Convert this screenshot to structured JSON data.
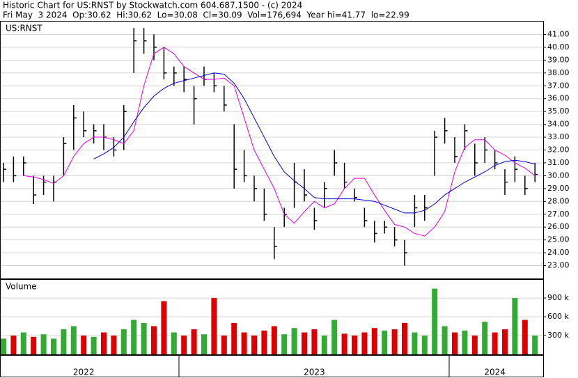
{
  "chart_data": [
    {
      "type": "ohlc",
      "title": "Historic Chart for US:RNST by Stockwatch.com 604.687.1500 - (c) 2024",
      "subtitle": "Fri May  3 2024  Op:30.62  Hi:30.62  Lo=30.08  Cl=30.09  Vol=176,694  Year hi=41.77  lo=22.99",
      "label": "US:RNST",
      "color": "#000000",
      "categories": [
        null,
        null,
        null,
        null,
        null,
        null,
        null,
        null,
        "2022",
        null,
        null,
        null,
        null,
        null,
        null,
        null,
        null,
        null,
        null,
        null,
        null,
        null,
        null,
        null,
        null,
        null,
        null,
        null,
        null,
        null,
        null,
        "2023",
        null,
        null,
        null,
        null,
        null,
        null,
        null,
        null,
        null,
        null,
        null,
        null,
        null,
        null,
        null,
        null,
        null,
        "2024",
        null,
        null,
        null,
        null
      ],
      "high": [
        31,
        31.5,
        31.5,
        30,
        30,
        30,
        33,
        35.5,
        35,
        34,
        34,
        33,
        35.5,
        41.5,
        41.5,
        41,
        40,
        38.5,
        38.5,
        37,
        38.5,
        38,
        37,
        34,
        32,
        30,
        29,
        26,
        27.5,
        31,
        30.5,
        27.5,
        29.5,
        32,
        31,
        29,
        27.5,
        26.5,
        26.5,
        26,
        25,
        28.5,
        28.5,
        33.5,
        34.5,
        33,
        34,
        32.5,
        33,
        32,
        30.5,
        31.5,
        30,
        31
      ],
      "low": [
        29.5,
        29.5,
        30,
        27.8,
        28.5,
        28,
        30,
        32,
        33,
        32.5,
        32,
        31.5,
        32,
        38,
        39.5,
        39,
        37.5,
        37,
        36.5,
        34,
        37,
        36.5,
        35,
        29,
        29.5,
        28,
        26.5,
        23.5,
        26,
        27.5,
        28,
        25.8,
        27.5,
        30,
        29,
        28,
        26,
        24.8,
        25.5,
        24.5,
        23,
        26,
        26.5,
        30,
        32.5,
        31,
        32,
        30,
        31,
        30.5,
        28.5,
        29.5,
        28.5,
        29.5
      ],
      "close": [
        30.5,
        30,
        31,
        28.5,
        29.5,
        29.5,
        32.5,
        34.5,
        33.5,
        33.5,
        33,
        32,
        35,
        40.5,
        40.5,
        40,
        38,
        38,
        37.5,
        36,
        37.5,
        37,
        35.5,
        30.5,
        30,
        29,
        27,
        24.5,
        27,
        29.5,
        28.5,
        26.5,
        29,
        31,
        29.5,
        28.3,
        26.5,
        25.5,
        26,
        25,
        24,
        27.5,
        27.5,
        33,
        33.5,
        31.5,
        33.5,
        31,
        32,
        31,
        29.5,
        30.5,
        29,
        30.1
      ],
      "overlays": [
        {
          "color": "#e000e0",
          "values": [
            null,
            null,
            30,
            29.9,
            29.7,
            29.4,
            30,
            31.5,
            32.5,
            33,
            33,
            32.8,
            32.5,
            33.5,
            37,
            39.5,
            40,
            39.5,
            38.5,
            38,
            37.5,
            37.5,
            37.6,
            37,
            34.5,
            32,
            30.5,
            29,
            27,
            26.3,
            27.2,
            28,
            27.5,
            27.8,
            29,
            29.8,
            29.8,
            28.5,
            27.3,
            26.2,
            26,
            25.5,
            25.3,
            26,
            27.2,
            30.3,
            32.2,
            32.8,
            32.8,
            32,
            31.6,
            31,
            30.6,
            30
          ]
        },
        {
          "color": "#0000cc",
          "values": [
            null,
            null,
            null,
            null,
            null,
            null,
            null,
            null,
            null,
            31.3,
            31.7,
            32.2,
            33.0,
            34.2,
            35.3,
            36.2,
            36.8,
            37.2,
            37.4,
            37.6,
            37.8,
            38,
            37.9,
            37.2,
            36,
            34.5,
            33,
            31.5,
            30.3,
            29.6,
            29,
            28.3,
            28.2,
            28.2,
            28.2,
            28.2,
            28.1,
            28,
            27.7,
            27.4,
            27.1,
            27.1,
            27.3,
            27.8,
            28.5,
            29,
            29.5,
            29.9,
            30.3,
            30.8,
            31.1,
            31.2,
            31.1,
            30.9
          ]
        }
      ],
      "ylim": [
        22,
        42
      ],
      "yticks": [
        {
          "value": 23,
          "label": "23.00"
        },
        {
          "value": 24,
          "label": "24.00"
        },
        {
          "value": 25,
          "label": "25.00"
        },
        {
          "value": 26,
          "label": "26.00"
        },
        {
          "value": 27,
          "label": "27.00"
        },
        {
          "value": 28,
          "label": "28.00"
        },
        {
          "value": 29,
          "label": "29.00"
        },
        {
          "value": 30,
          "label": "30.00"
        },
        {
          "value": 31,
          "label": "31.00"
        },
        {
          "value": 32,
          "label": "32.00"
        },
        {
          "value": 33,
          "label": "33.00"
        },
        {
          "value": 34,
          "label": "34.00"
        },
        {
          "value": 35,
          "label": "35.00"
        },
        {
          "value": 36,
          "label": "36.00"
        },
        {
          "value": 37,
          "label": "37.00"
        },
        {
          "value": 38,
          "label": "38.00"
        },
        {
          "value": 39,
          "label": "39.00"
        },
        {
          "value": 40,
          "label": "40.00"
        },
        {
          "value": 41,
          "label": "41.00"
        }
      ],
      "grid": true
    },
    {
      "type": "bar",
      "label": "Volume",
      "up_color": "#33aa33",
      "down_color": "#dd0000",
      "values": [
        250000,
        300000,
        350000,
        280000,
        320000,
        250000,
        400000,
        450000,
        300000,
        280000,
        350000,
        300000,
        400000,
        550000,
        500000,
        450000,
        850000,
        350000,
        300000,
        400000,
        320000,
        900000,
        300000,
        500000,
        350000,
        300000,
        380000,
        450000,
        320000,
        420000,
        350000,
        400000,
        300000,
        550000,
        330000,
        300000,
        350000,
        420000,
        380000,
        400000,
        500000,
        350000,
        300000,
        1050000,
        450000,
        350000,
        380000,
        300000,
        520000,
        350000,
        400000,
        900000,
        550000,
        300000
      ],
      "ylim": [
        0,
        1190000
      ],
      "yticks": [
        {
          "value": 300000,
          "label": "300 k"
        },
        {
          "value": 600000,
          "label": "600 k"
        },
        {
          "value": 900000,
          "label": "900 k"
        }
      ],
      "grid": true
    }
  ]
}
